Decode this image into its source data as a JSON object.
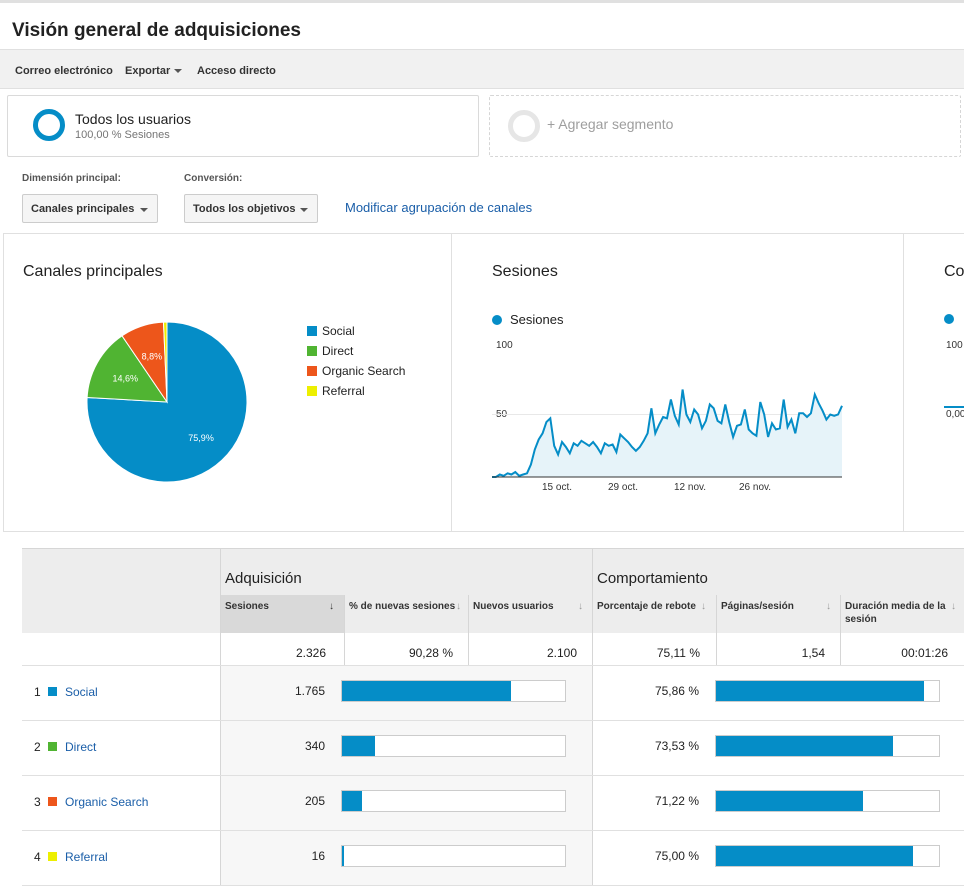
{
  "page_title": "Visión general de adquisiciones",
  "toolbar": {
    "email": "Correo electrónico",
    "export": "Exportar",
    "shortcut": "Acceso directo"
  },
  "segments": {
    "active_name": "Todos los usuarios",
    "active_sub": "100,00 % Sesiones",
    "add": "+ Agregar segmento"
  },
  "controls": {
    "primary_dimension_label": "Dimensión principal:",
    "primary_dimension_value": "Canales principales",
    "conversion_label": "Conversión:",
    "conversion_value": "Todos los objetivos",
    "modify_link": "Modificar agrupación de canales"
  },
  "panels": {
    "channels_title": "Canales principales",
    "sessions_title": "Sesiones",
    "third_title": "Co"
  },
  "colors": {
    "social": "#058dc7",
    "direct": "#50b432",
    "organic": "#ed561b",
    "referral": "#edef00",
    "link": "#1a5ea8"
  },
  "chart_data": [
    {
      "type": "pie",
      "title": "Canales principales",
      "categories": [
        "Social",
        "Direct",
        "Organic Search",
        "Referral"
      ],
      "values": [
        75.9,
        14.6,
        8.8,
        0.7
      ],
      "labels": [
        "75,9%",
        "14,6%",
        "8,8%",
        ""
      ],
      "legend_position": "right"
    },
    {
      "type": "area",
      "title": "Sesiones",
      "series": [
        {
          "name": "Sesiones",
          "values": [
            0,
            0,
            2,
            1,
            3,
            2,
            4,
            1,
            2,
            3,
            10,
            22,
            30,
            35,
            44,
            47,
            25,
            18,
            28,
            24,
            19,
            27,
            25,
            29,
            27,
            25,
            28,
            24,
            19,
            27,
            25,
            26,
            20,
            34,
            31,
            28,
            24,
            21,
            24,
            29,
            35,
            55,
            35,
            42,
            48,
            47,
            62,
            49,
            42,
            70,
            50,
            44,
            54,
            50,
            39,
            45,
            58,
            55,
            45,
            43,
            58,
            44,
            32,
            41,
            42,
            54,
            38,
            35,
            33,
            60,
            50,
            32,
            43,
            38,
            39,
            62,
            40,
            46,
            35,
            51,
            51,
            48,
            51,
            66,
            59,
            53,
            46,
            50,
            49,
            50,
            57
          ]
        }
      ],
      "x_tick_labels": [
        "15 oct.",
        "29 oct.",
        "12 nov.",
        "26 nov."
      ],
      "y_tick_labels": [
        "100",
        "50"
      ],
      "ylim": [
        0,
        100
      ]
    },
    {
      "type": "line",
      "title": "Co",
      "y_tick_labels": [
        "100",
        "0,00"
      ]
    }
  ],
  "table": {
    "groups": [
      "Adquisición",
      "Comportamiento"
    ],
    "columns": [
      "Sesiones",
      "% de nuevas sesiones",
      "Nuevos usuarios",
      "Porcentaje de rebote",
      "Páginas/sesión",
      "Duración media de la sesión"
    ],
    "totals": [
      "2.326",
      "90,28 %",
      "2.100",
      "75,11 %",
      "1,54",
      "00:01:26"
    ],
    "rows": [
      {
        "num": "1",
        "name": "Social",
        "color": "#058dc7",
        "sessions": "1.765",
        "bounce": "75,86 %",
        "session_share": 75.9,
        "bounce_rate": 75.86
      },
      {
        "num": "2",
        "name": "Direct",
        "color": "#50b432",
        "sessions": "340",
        "bounce": "73,53 %",
        "session_share": 14.6,
        "bounce_rate": 73.53
      },
      {
        "num": "3",
        "name": "Organic Search",
        "color": "#ed561b",
        "sessions": "205",
        "bounce": "71,22 %",
        "session_share": 8.8,
        "bounce_rate": 71.22
      },
      {
        "num": "4",
        "name": "Referral",
        "color": "#edef00",
        "sessions": "16",
        "bounce": "75,00 %",
        "session_share": 0.7,
        "bounce_rate": 75.0
      }
    ]
  }
}
